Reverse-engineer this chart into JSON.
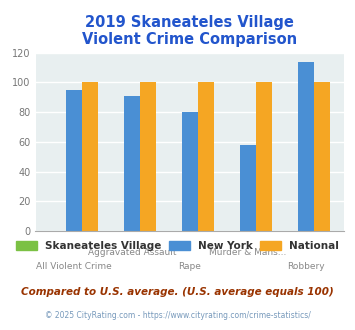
{
  "title": "2019 Skaneateles Village\nViolent Crime Comparison",
  "categories": [
    "All Violent Crime",
    "Aggravated Assault",
    "Rape",
    "Murder & Mans...",
    "Robbery"
  ],
  "series": {
    "Skaneateles Village": [
      0,
      0,
      0,
      0,
      0
    ],
    "New York": [
      95,
      91,
      80,
      58,
      114
    ],
    "National": [
      100,
      100,
      100,
      100,
      100
    ]
  },
  "colors": {
    "Skaneateles Village": "#7bc144",
    "New York": "#4a8fd4",
    "National": "#f5a623"
  },
  "ylim": [
    0,
    120
  ],
  "yticks": [
    0,
    20,
    40,
    60,
    80,
    100,
    120
  ],
  "title_color": "#2255cc",
  "title_fontsize": 10.5,
  "bg_color": "#e8eff0",
  "footer_text": "Compared to U.S. average. (U.S. average equals 100)",
  "copyright_text": "© 2025 CityRating.com - https://www.cityrating.com/crime-statistics/",
  "bar_width": 0.28,
  "grid_color": "#ffffff",
  "label_top_row": [
    "",
    "Aggravated Assault",
    "",
    "Murder & Mans...",
    ""
  ],
  "label_bot_row": [
    "All Violent Crime",
    "",
    "Rape",
    "",
    "Robbery"
  ]
}
